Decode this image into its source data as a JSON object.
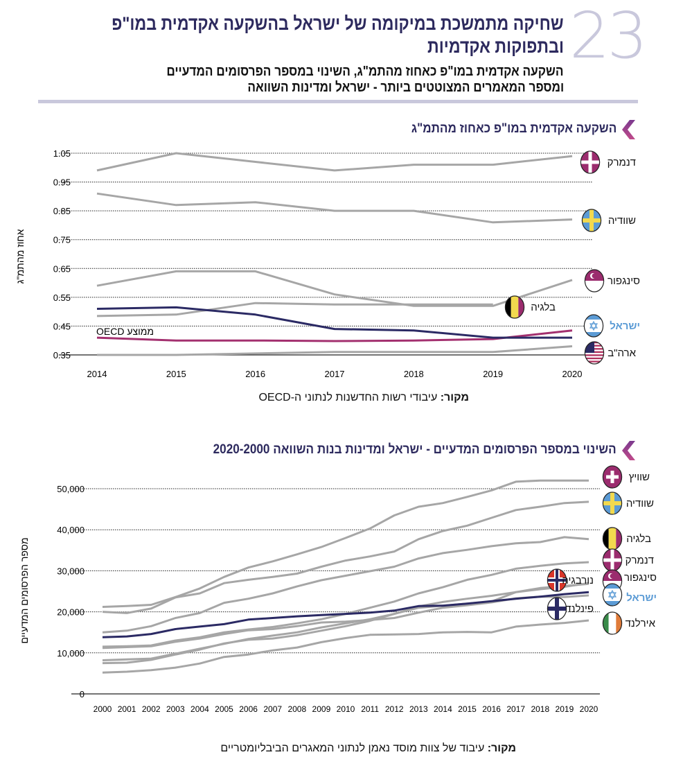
{
  "header": {
    "number": "23",
    "title_line1": "שחיקה מתמשכת במיקומה של ישראל בהשקעה אקדמית במו\"פ",
    "title_line2": "ובתפוקות אקדמיות",
    "subtitle_line1": "השקעה אקדמית במו\"פ כאחוז מהתמ\"ג, השינוי במספר הפרסומים המדעיים",
    "subtitle_line2": "ומספר המאמרים המצוטטים ביותר - ישראל ומדינות השוואה"
  },
  "colors": {
    "accent": "#2d2a5e",
    "number": "#c9c8dc",
    "gray_series": "#a6a6a6",
    "israel": "#2b2a64",
    "oecd": "#a3306f",
    "israel_label": "#5b9bd5"
  },
  "chart_data": [
    {
      "type": "line",
      "title": "השקעה אקדמית במו\"פ כאחוז מהתמ\"ג",
      "ylabel": "אחוז מהתמ\"ג",
      "source_label": "מקור:",
      "source_text": " עיבודי רשות החדשנות לנתוני ה-OECD",
      "x": [
        2014,
        2015,
        2016,
        2017,
        2018,
        2019,
        2020
      ],
      "xticks": [
        "2014",
        "2015",
        "2016",
        "2017",
        "2018",
        "2019",
        "2020"
      ],
      "yticks": [
        "1.05",
        "0.95",
        "0.85",
        "0.75",
        "0.65",
        "0.55",
        "0.45",
        "0.35"
      ],
      "ylim": [
        0.35,
        1.05
      ],
      "grid": true,
      "series": [
        {
          "name": "דנמרק",
          "flag": "denmark-flag",
          "values": [
            0.99,
            1.05,
            1.02,
            0.99,
            1.01,
            1.01,
            1.04
          ]
        },
        {
          "name": "שוודיה",
          "flag": "sweden-flag",
          "values": [
            0.91,
            0.87,
            0.88,
            0.85,
            0.85,
            0.81,
            0.82
          ]
        },
        {
          "name": "סינגפור",
          "flag": "singapore-flag",
          "values": [
            0.59,
            0.64,
            0.64,
            0.56,
            0.52,
            0.52,
            0.61
          ]
        },
        {
          "name": "בלגיה",
          "flag": "belgium-flag",
          "values": [
            0.485,
            0.49,
            0.53,
            0.525,
            0.525,
            0.525,
            null
          ]
        },
        {
          "name": "ישראל",
          "flag": "israel-flag",
          "values": [
            0.51,
            0.515,
            0.49,
            0.44,
            0.435,
            0.41,
            0.41
          ]
        },
        {
          "name": "ממוצע OECD",
          "values": [
            0.41,
            0.4,
            0.4,
            0.398,
            0.4,
            0.405,
            0.435
          ]
        },
        {
          "name": "ארה\"ב",
          "flag": "usa-flag",
          "values": [
            0.35,
            0.35,
            0.355,
            0.36,
            0.36,
            0.36,
            0.38
          ]
        }
      ]
    },
    {
      "type": "line",
      "title": "השינוי במספר הפרסומים המדעיים - ישראל ומדינות בנות השוואה 2020-2000",
      "ylabel": "מספר הפרסומים המדעיים",
      "source_label": "מקור:",
      "source_text": " עיבוד של צוות מוסד נאמן לנתוני המאגרים הביבליומטריים",
      "x": [
        2000,
        2001,
        2002,
        2003,
        2004,
        2005,
        2006,
        2007,
        2008,
        2009,
        2010,
        2011,
        2012,
        2013,
        2014,
        2015,
        2016,
        2017,
        2018,
        2019,
        2020
      ],
      "xticks": [
        "2000",
        "2001",
        "2002",
        "2003",
        "2004",
        "2005",
        "2006",
        "2007",
        "2008",
        "2009",
        "2010",
        "2011",
        "2012",
        "2013",
        "2014",
        "2015",
        "2016",
        "2017",
        "2018",
        "2019",
        "2020"
      ],
      "yticks": [
        "50,000",
        "40,000",
        "30,000",
        "20,000",
        "10,000",
        "0"
      ],
      "ylim": [
        0,
        50000
      ],
      "grid": true,
      "series": [
        {
          "name": "שוויץ",
          "flag": "switzerland-flag",
          "values": [
            21200,
            21400,
            21700,
            23600,
            25700,
            28500,
            30800,
            32300,
            34000,
            35800,
            38000,
            40300,
            43500,
            45600,
            46500,
            48000,
            49600,
            51700,
            52000,
            52000,
            52000
          ]
        },
        {
          "name": "שוודיה",
          "flag": "sweden-flag",
          "values": [
            20000,
            19700,
            20800,
            23500,
            24500,
            27000,
            27800,
            28500,
            29300,
            31000,
            32500,
            33500,
            34700,
            37700,
            39700,
            41000,
            42900,
            44800,
            45600,
            46500,
            46800
          ]
        },
        {
          "name": "בלגיה",
          "flag": "belgium-flag",
          "values": [
            15000,
            15400,
            16500,
            18500,
            19700,
            22200,
            23200,
            24500,
            26200,
            27700,
            28800,
            29900,
            31000,
            33000,
            34300,
            35100,
            36000,
            36700,
            37000,
            38200,
            37700
          ]
        },
        {
          "name": "דנמרק",
          "flag": "denmark-flag",
          "values": [
            11500,
            11600,
            11800,
            13000,
            13800,
            15000,
            15700,
            16300,
            17200,
            18200,
            19500,
            21000,
            22500,
            24500,
            26000,
            27800,
            29000,
            30500,
            31200,
            31800,
            32100
          ]
        },
        {
          "name": "סינגפור",
          "flag": "singapore-flag",
          "values": [
            7500,
            7600,
            8300,
            9600,
            10800,
            12300,
            13200,
            13500,
            14300,
            15400,
            16500,
            17800,
            19500,
            21300,
            22400,
            23200,
            23900,
            24800,
            25500,
            26100,
            27000
          ]
        },
        {
          "name": "נורבגיה",
          "flag": "norway-flag",
          "values": [
            8200,
            8400,
            8600,
            9800,
            11000,
            12200,
            13400,
            14200,
            15000,
            16200,
            17200,
            18200,
            19500,
            21000,
            21500,
            22000,
            22500,
            24800,
            25800,
            26300,
            26800
          ]
        },
        {
          "name": "ישראל",
          "flag": "israel-flag",
          "values": [
            13800,
            14000,
            14600,
            15800,
            16400,
            17000,
            18100,
            18500,
            18900,
            19200,
            19500,
            19800,
            20300,
            21400,
            21500,
            22000,
            22600,
            23200,
            23700,
            24300,
            24800
          ]
        },
        {
          "name": "פינלנד",
          "flag": "finland-flag",
          "values": [
            11200,
            11400,
            11600,
            12700,
            13500,
            14600,
            15500,
            15800,
            16500,
            17400,
            17600,
            18000,
            18500,
            19800,
            21000,
            21600,
            22300,
            23300,
            23700,
            23600,
            24000
          ]
        },
        {
          "name": "אירלנד",
          "flag": "ireland-flag",
          "values": [
            5200,
            5400,
            5800,
            6400,
            7400,
            9000,
            9600,
            10600,
            11300,
            12600,
            13600,
            14400,
            14500,
            14600,
            15000,
            15100,
            15000,
            16400,
            16900,
            17300,
            17900
          ]
        }
      ]
    }
  ]
}
